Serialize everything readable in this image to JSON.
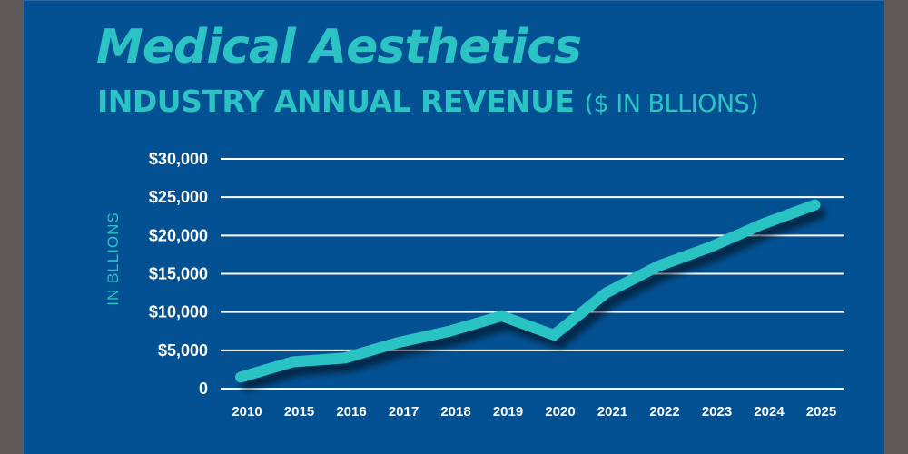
{
  "colors": {
    "background": "#035193",
    "frame": "#5e5958",
    "accent": "#2cc3c4",
    "gridline": "#ffffff",
    "tick_text": "#ffffff"
  },
  "header": {
    "title": "Medical Aesthetics",
    "subtitle": "INDUSTRY ANNUAL REVENUE",
    "subtitle_note": "($ IN BLLIONS)"
  },
  "chart_data": {
    "type": "line",
    "title": "Medical Aesthetics Industry Annual Revenue ($ in Bllions)",
    "xlabel": "",
    "ylabel": "IN BLLIONS",
    "categories": [
      "2010",
      "2015",
      "2016",
      "2017",
      "2018",
      "2019",
      "2020",
      "2021",
      "2022",
      "2023",
      "2024",
      "2025"
    ],
    "series": [
      {
        "name": "Annual Revenue",
        "values": [
          1500,
          3500,
          4000,
          6000,
          7500,
          9500,
          7000,
          12500,
          16000,
          18500,
          21500,
          24000
        ]
      }
    ],
    "ylim": [
      0,
      30000
    ],
    "yticks": [
      0,
      5000,
      10000,
      15000,
      20000,
      25000,
      30000
    ],
    "ytick_labels": [
      "0",
      "$5,000",
      "$10,000",
      "$15,000",
      "$20,000",
      "$25,000",
      "$30,000"
    ],
    "grid": true,
    "legend": "none"
  }
}
